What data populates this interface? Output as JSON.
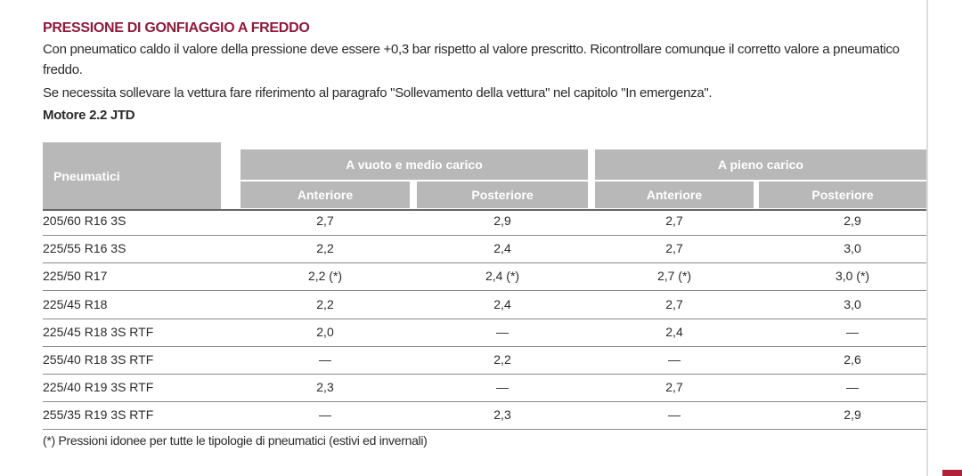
{
  "header": {
    "title": "PRESSIONE DI GONFIAGGIO A FREDDO"
  },
  "paragraphs": [
    "Con pneumatico caldo il valore della pressione deve essere +0,3 bar rispetto al valore prescritto. Ricontrollare comunque il corretto valore a pneumatico freddo.",
    "Se necessita sollevare la vettura fare riferimento al paragrafo \"Sollevamento della vettura\" nel capitolo \"In emergenza\"."
  ],
  "subtitle": "Motore 2.2 JTD",
  "table": {
    "corner": "Pneumatici",
    "groups": [
      "A vuoto e medio carico",
      "A pieno carico"
    ],
    "columns": [
      "Anteriore",
      "Posteriore",
      "Anteriore",
      "Posteriore"
    ],
    "rows": [
      [
        "205/60 R16 3S",
        "2,7",
        "2,9",
        "2,7",
        "2,9"
      ],
      [
        "225/55 R16 3S",
        "2,2",
        "2,4",
        "2,7",
        "3,0"
      ],
      [
        "225/50 R17",
        "2,2 (*)",
        "2,4 (*)",
        "2,7 (*)",
        "3,0 (*)"
      ],
      [
        "225/45 R18",
        "2,2",
        "2,4",
        "2,7",
        "3,0"
      ],
      [
        "225/45 R18 3S RTF",
        "2,0",
        "—",
        "2,4",
        "—"
      ],
      [
        "255/40 R18 3S RTF",
        "—",
        "2,2",
        "—",
        "2,6"
      ],
      [
        "225/40 R19 3S RTF",
        "2,3",
        "—",
        "2,7",
        "—"
      ],
      [
        "255/35 R19 3S RTF",
        "—",
        "2,3",
        "—",
        "2,9"
      ]
    ],
    "footnote": "(*) Pressioni idonee per tutte le tipologie di pneumatici (estivi ed invernali)"
  }
}
